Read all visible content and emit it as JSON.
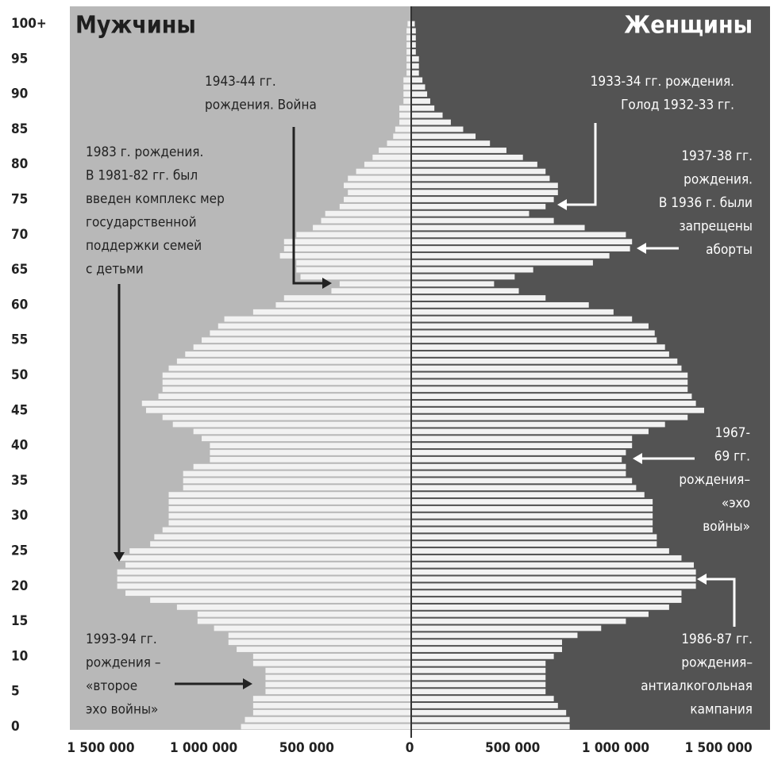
{
  "chart_data": {
    "type": "pyramid",
    "categories": [
      "0",
      null,
      null,
      null,
      null,
      "5",
      null,
      null,
      null,
      null,
      "10",
      null,
      null,
      null,
      null,
      "15",
      null,
      null,
      null,
      null,
      "20",
      null,
      null,
      null,
      null,
      "25",
      null,
      null,
      null,
      null,
      "30",
      null,
      null,
      null,
      null,
      "35",
      null,
      null,
      null,
      null,
      "40",
      null,
      null,
      null,
      null,
      "45",
      null,
      null,
      null,
      null,
      "50",
      null,
      null,
      null,
      null,
      "55",
      null,
      null,
      null,
      null,
      "60",
      null,
      null,
      null,
      null,
      "65",
      null,
      null,
      null,
      null,
      "70",
      null,
      null,
      null,
      null,
      "75",
      null,
      null,
      null,
      null,
      "80",
      null,
      null,
      null,
      null,
      "85",
      null,
      null,
      null,
      null,
      "90",
      null,
      null,
      null,
      null,
      "95",
      null,
      null,
      null,
      null,
      "100+"
    ],
    "series": [
      {
        "name": "Мужчины",
        "color": "#f2f2f2",
        "values": [
          819000,
          800000,
          760000,
          760000,
          760000,
          700000,
          700000,
          700000,
          700000,
          760000,
          760000,
          840000,
          880000,
          880000,
          950000,
          1030000,
          1030000,
          1130000,
          1260000,
          1380000,
          1420000,
          1420000,
          1420000,
          1380000,
          1420000,
          1360000,
          1260000,
          1240000,
          1200000,
          1170000,
          1170000,
          1170000,
          1170000,
          1170000,
          1100000,
          1100000,
          1100000,
          1050000,
          970000,
          970000,
          970000,
          1010000,
          1050000,
          1150000,
          1200000,
          1280000,
          1300000,
          1220000,
          1200000,
          1200000,
          1200000,
          1170000,
          1130000,
          1090000,
          1050000,
          1010000,
          970000,
          930000,
          900000,
          760000,
          650000,
          610000,
          380000,
          340000,
          530000,
          550000,
          550000,
          630000,
          610000,
          610000,
          550000,
          470000,
          430000,
          410000,
          340000,
          320000,
          300000,
          320000,
          300000,
          260000,
          220000,
          180000,
          150000,
          110000,
          80000,
          70000,
          50000,
          50000,
          50000,
          30000,
          30000,
          30000,
          30000,
          15000,
          15000,
          15000,
          15000,
          15000,
          15000,
          15000,
          10000
        ]
      },
      {
        "name": "Женщины",
        "color": "#f2f2f2",
        "values": [
          777000,
          777000,
          760000,
          720000,
          700000,
          660000,
          660000,
          660000,
          660000,
          660000,
          700000,
          740000,
          740000,
          815000,
          930000,
          1050000,
          1160000,
          1260000,
          1320000,
          1320000,
          1390000,
          1390000,
          1390000,
          1380000,
          1320000,
          1260000,
          1200000,
          1200000,
          1180000,
          1180000,
          1180000,
          1180000,
          1180000,
          1140000,
          1100000,
          1080000,
          1050000,
          1050000,
          1030000,
          1050000,
          1080000,
          1080000,
          1160000,
          1240000,
          1350000,
          1430000,
          1390000,
          1370000,
          1350000,
          1350000,
          1350000,
          1320000,
          1300000,
          1260000,
          1240000,
          1200000,
          1190000,
          1160000,
          1080000,
          990000,
          870000,
          660000,
          530000,
          410000,
          510000,
          600000,
          890000,
          970000,
          1070000,
          1080000,
          1050000,
          850000,
          700000,
          580000,
          660000,
          700000,
          720000,
          720000,
          680000,
          660000,
          620000,
          550000,
          470000,
          390000,
          320000,
          260000,
          200000,
          160000,
          120000,
          100000,
          85000,
          75000,
          62000,
          45000,
          45000,
          45000,
          30000,
          30000,
          30000,
          30000,
          25000
        ]
      }
    ],
    "xlim": [
      -1650000,
      1750000
    ],
    "xticks": [
      {
        "value": -1500000,
        "label": "1 500 000"
      },
      {
        "value": -1000000,
        "label": "1 000 000"
      },
      {
        "value": -500000,
        "label": "500 000"
      },
      0,
      {
        "value": 500000,
        "label": "500 000"
      },
      {
        "value": 1000000,
        "label": "1 000 000"
      },
      {
        "value": 1500000,
        "label": "1 500 000"
      }
    ],
    "annotations": [
      {
        "lines": [
          "1943-44 гг.",
          "рождения. Война"
        ]
      },
      {
        "lines": [
          "1933-34 гг. рождения.",
          "Голод 1932-33 гг."
        ]
      },
      {
        "lines": [
          "1983 г. рождения.",
          "В 1981-82 гг. был",
          "введен комплекс мер",
          "государственной",
          "поддержки семей",
          "с детьми"
        ]
      },
      {
        "lines": [
          "1937-38 гг.",
          "рождения.",
          "В 1936 г. были",
          "запрещены",
          "аборты"
        ]
      },
      {
        "lines": [
          "1967-",
          "69 гг.",
          "рождения–",
          "«эхо",
          "войны»"
        ]
      },
      {
        "lines": [
          "1993-94 гг.",
          "рождения –",
          "«второе",
          "эхо войны»"
        ]
      },
      {
        "lines": [
          "1986-87 гг.",
          "рождения–",
          "антиалкогольная",
          "кампания"
        ]
      }
    ]
  }
}
